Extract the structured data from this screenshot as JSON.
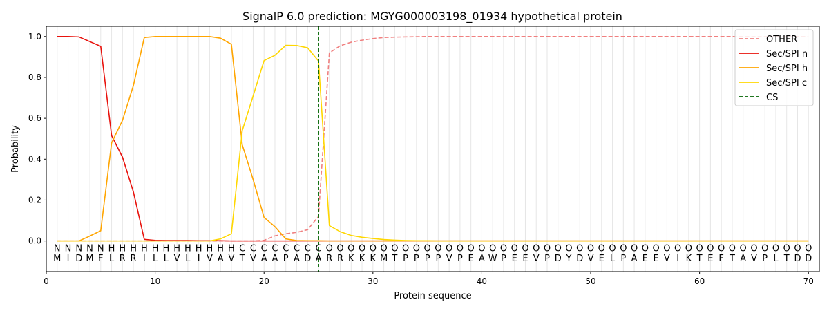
{
  "chart_data": {
    "type": "line",
    "title": "SignalP 6.0 prediction: MGYG000003198_01934 hypothetical protein",
    "xlabel": "Protein sequence",
    "ylabel": "Probability",
    "xlim": [
      0,
      71
    ],
    "ylim": [
      -0.15,
      1.05
    ],
    "xticks": [
      0,
      10,
      20,
      30,
      40,
      50,
      60,
      70
    ],
    "yticks": [
      0.0,
      0.2,
      0.4,
      0.6,
      0.8,
      1.0
    ],
    "legend_position": "top-right",
    "cleavage_site": 25,
    "residues": [
      "M",
      "I",
      "D",
      "M",
      "F",
      "L",
      "R",
      "R",
      "I",
      "L",
      "L",
      "V",
      "L",
      "I",
      "V",
      "A",
      "V",
      "T",
      "V",
      "A",
      "A",
      "P",
      "A",
      "D",
      "A",
      "R",
      "R",
      "K",
      "K",
      "K",
      "M",
      "T",
      "P",
      "P",
      "P",
      "P",
      "V",
      "P",
      "E",
      "A",
      "W",
      "P",
      "E",
      "E",
      "V",
      "P",
      "D",
      "Y",
      "D",
      "V",
      "E",
      "L",
      "P",
      "A",
      "E",
      "E",
      "V",
      "I",
      "K",
      "T",
      "E",
      "F",
      "T",
      "A",
      "V",
      "P",
      "L",
      "T",
      "D",
      "D"
    ],
    "region_labels": [
      "N",
      "N",
      "N",
      "N",
      "N",
      "H",
      "H",
      "H",
      "H",
      "H",
      "H",
      "H",
      "H",
      "H",
      "H",
      "H",
      "H",
      "C",
      "C",
      "C",
      "C",
      "C",
      "C",
      "C",
      "C",
      "O",
      "O",
      "O",
      "O",
      "O",
      "O",
      "O",
      "O",
      "O",
      "O",
      "O",
      "O",
      "O",
      "O",
      "O",
      "O",
      "O",
      "O",
      "O",
      "O",
      "O",
      "O",
      "O",
      "O",
      "O",
      "O",
      "O",
      "O",
      "O",
      "O",
      "O",
      "O",
      "O",
      "O",
      "O",
      "O",
      "O",
      "O",
      "O",
      "O",
      "O",
      "O",
      "O",
      "O",
      "O"
    ],
    "region_colors": {
      "N": "#e8120c",
      "H": "#ffa500",
      "C": "#ffd700",
      "O": "#777777"
    },
    "series": [
      {
        "name": "OTHER",
        "color": "#f08080",
        "dashed": true,
        "values": [
          0,
          0,
          0,
          0,
          0,
          0,
          0,
          0,
          0,
          0,
          0,
          0,
          0,
          0,
          0,
          0,
          0,
          0,
          0,
          0.003,
          0.025,
          0.035,
          0.042,
          0.055,
          0.12,
          0.92,
          0.955,
          0.972,
          0.982,
          0.99,
          0.995,
          0.997,
          0.998,
          0.999,
          1,
          1,
          1,
          1,
          1,
          1,
          1,
          1,
          1,
          1,
          1,
          1,
          1,
          1,
          1,
          1,
          1,
          1,
          1,
          1,
          1,
          1,
          1,
          1,
          1,
          1,
          1,
          1,
          1,
          1,
          1,
          1,
          1,
          1,
          1,
          1
        ]
      },
      {
        "name": "Sec/SPI n",
        "color": "#e8120c",
        "dashed": false,
        "values": [
          1.0,
          1.0,
          0.998,
          0.975,
          0.952,
          0.515,
          0.41,
          0.24,
          0.008,
          0.003,
          0.002,
          0.002,
          0.002,
          0.001,
          0.001,
          0.001,
          0,
          0,
          0,
          0,
          0,
          0,
          0,
          0,
          0,
          0,
          0,
          0,
          0,
          0,
          0,
          0,
          0,
          0,
          0,
          0,
          0,
          0,
          0,
          0,
          0,
          0,
          0,
          0,
          0,
          0,
          0,
          0,
          0,
          0,
          0,
          0,
          0,
          0,
          0,
          0,
          0,
          0,
          0,
          0,
          0,
          0,
          0,
          0,
          0,
          0,
          0,
          0,
          0,
          0
        ]
      },
      {
        "name": "Sec/SPI h",
        "color": "#ffa500",
        "dashed": false,
        "values": [
          0,
          0,
          0,
          0.024,
          0.05,
          0.48,
          0.59,
          0.76,
          0.995,
          1.0,
          1.0,
          1.0,
          1.0,
          1.0,
          1.0,
          0.992,
          0.962,
          0.47,
          0.3,
          0.115,
          0.07,
          0.01,
          0.002,
          0.001,
          0.001,
          0,
          0,
          0,
          0,
          0,
          0,
          0,
          0,
          0,
          0,
          0,
          0,
          0,
          0,
          0,
          0,
          0,
          0,
          0,
          0,
          0,
          0,
          0,
          0,
          0,
          0,
          0,
          0,
          0,
          0,
          0,
          0,
          0,
          0,
          0,
          0,
          0,
          0,
          0,
          0,
          0,
          0,
          0,
          0,
          0
        ]
      },
      {
        "name": "Sec/SPI c",
        "color": "#ffd700",
        "dashed": false,
        "values": [
          0,
          0,
          0,
          0,
          0,
          0,
          0,
          0,
          0,
          0,
          0,
          0,
          0,
          0,
          0,
          0.01,
          0.035,
          0.54,
          0.71,
          0.882,
          0.908,
          0.957,
          0.956,
          0.945,
          0.88,
          0.075,
          0.045,
          0.027,
          0.018,
          0.012,
          0.007,
          0.004,
          0.002,
          0.001,
          0.001,
          0,
          0,
          0,
          0,
          0,
          0,
          0,
          0,
          0,
          0,
          0,
          0,
          0,
          0,
          0,
          0,
          0,
          0,
          0,
          0,
          0,
          0,
          0,
          0,
          0,
          0,
          0,
          0,
          0,
          0,
          0,
          0,
          0,
          0,
          0
        ]
      }
    ],
    "cs_legend": {
      "name": "CS",
      "color": "#006400"
    }
  }
}
